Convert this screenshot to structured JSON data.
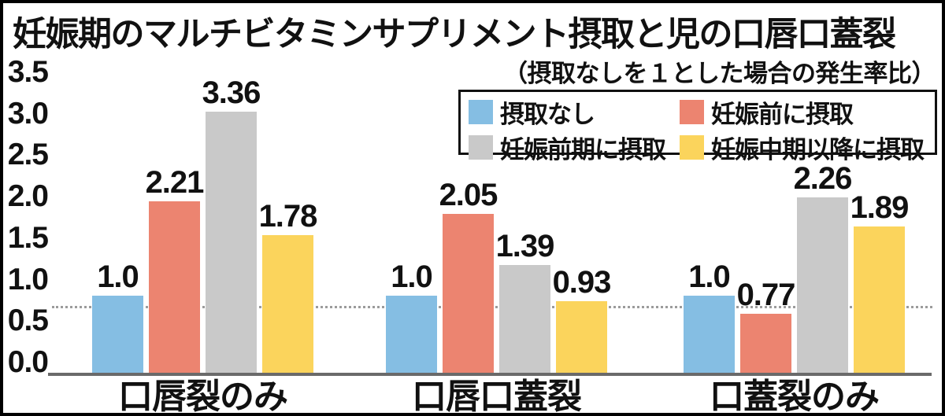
{
  "title": "妊娠期のマルチビタミンサプリメント摂取と児の口唇口蓋裂",
  "subtitle": "（摂取なしを１とした場合の発生率比）",
  "chart_data": {
    "type": "bar",
    "title": "妊娠期のマルチビタミンサプリメント摂取と児の口唇口蓋裂",
    "subtitle": "（摂取なしを１とした場合の発生率比）",
    "categories": [
      "口唇裂のみ",
      "口唇口蓋裂",
      "口蓋裂のみ"
    ],
    "series": [
      {
        "name": "摂取なし",
        "color": "#85BEE3",
        "values": [
          "1.0",
          "1.0",
          "1.0"
        ]
      },
      {
        "name": "妊娠前に摂取",
        "color": "#EC8470",
        "values": [
          "2.21",
          "2.05",
          "0.77"
        ]
      },
      {
        "name": "妊娠前期に摂取",
        "color": "#C9C9C9",
        "values": [
          "3.36",
          "1.39",
          "2.26"
        ]
      },
      {
        "name": "妊娠中期以降に摂取",
        "color": "#FBD45C",
        "values": [
          "1.78",
          "0.93",
          "1.89"
        ]
      }
    ],
    "ylim": [
      0,
      3.5
    ],
    "yticks": [
      "3.5",
      "3.0",
      "2.5",
      "2.0",
      "1.5",
      "1.0",
      "0.5",
      "0.0"
    ],
    "ylabel": "",
    "xlabel": "",
    "grid": false,
    "reference_line_value": 1,
    "legend_position": "top-right",
    "colors": {
      "axis_line": "#6a6a6a",
      "reference_dotted": "#9b9b9b",
      "text": "#111111",
      "border": "#000000"
    }
  }
}
